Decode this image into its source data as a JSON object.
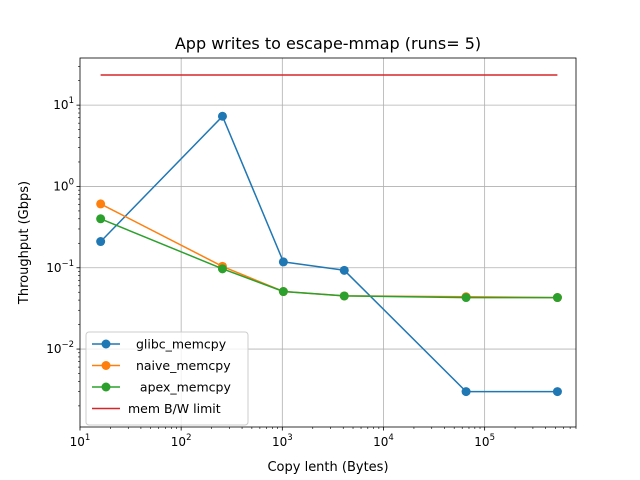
{
  "chart_data": {
    "type": "line",
    "title": "App writes to escape-mmap (runs= 5)",
    "xlabel": "Copy lenth (Bytes)",
    "ylabel": "Throughput (Gbps)",
    "xscale": "log",
    "yscale": "log",
    "xlim": [
      10,
      800000
    ],
    "ylim": [
      0.0011,
      38
    ],
    "grid": true,
    "legend_position": "lower-left",
    "x_ticks": [
      {
        "value": 10,
        "base": "10",
        "exp": "1"
      },
      {
        "value": 100,
        "base": "10",
        "exp": "2"
      },
      {
        "value": 1000,
        "base": "10",
        "exp": "3"
      },
      {
        "value": 10000,
        "base": "10",
        "exp": "4"
      },
      {
        "value": 100000,
        "base": "10",
        "exp": "5"
      }
    ],
    "y_ticks": [
      {
        "value": 0.01,
        "base": "10",
        "exp": "−2"
      },
      {
        "value": 0.1,
        "base": "10",
        "exp": "−1"
      },
      {
        "value": 1,
        "base": "10",
        "exp": "0"
      },
      {
        "value": 10,
        "base": "10",
        "exp": "1"
      }
    ],
    "series": [
      {
        "name": "  glibc_memcpy",
        "color": "#1f77b4",
        "marker": "circle",
        "x": [
          16,
          256,
          1024,
          4096,
          65536,
          524288
        ],
        "y": [
          0.21,
          7.3,
          0.118,
          0.093,
          0.003,
          0.003
        ]
      },
      {
        "name": "  naive_memcpy",
        "color": "#ff7f0e",
        "marker": "circle",
        "x": [
          16,
          256,
          1024,
          4096,
          65536,
          524288
        ],
        "y": [
          0.61,
          0.104,
          0.051,
          0.045,
          0.044,
          0.043
        ]
      },
      {
        "name": "   apex_memcpy",
        "color": "#2ca02c",
        "marker": "circle",
        "x": [
          16,
          256,
          1024,
          4096,
          65536,
          524288
        ],
        "y": [
          0.4,
          0.097,
          0.051,
          0.045,
          0.043,
          0.043
        ]
      },
      {
        "name": "mem B/W limit",
        "color": "#d62728",
        "marker": "none",
        "x": [
          16,
          524288
        ],
        "y": [
          23.5,
          23.5
        ]
      }
    ]
  }
}
